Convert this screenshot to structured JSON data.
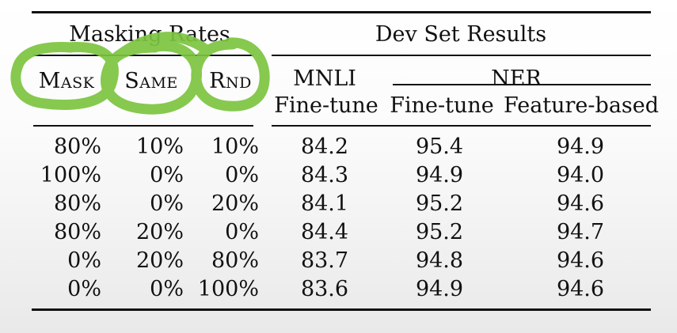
{
  "table": {
    "group_headers": {
      "masking": "Masking Rates",
      "dev": "Dev Set Results"
    },
    "sub_headers": {
      "mask": "Mask",
      "same": "Same",
      "rnd": "Rnd",
      "mnli": "MNLI",
      "ner": "NER"
    },
    "column_headers": {
      "mnli_ft": "Fine-tune",
      "ner_ft": "Fine-tune",
      "ner_fb": "Feature-based"
    },
    "rows": [
      [
        "80%",
        "10%",
        "10%",
        "84.2",
        "95.4",
        "94.9"
      ],
      [
        "100%",
        "0%",
        "0%",
        "84.3",
        "94.9",
        "94.0"
      ],
      [
        "80%",
        "0%",
        "20%",
        "84.1",
        "95.2",
        "94.6"
      ],
      [
        "80%",
        "20%",
        "0%",
        "84.4",
        "95.2",
        "94.7"
      ],
      [
        "0%",
        "20%",
        "80%",
        "83.7",
        "94.8",
        "94.6"
      ],
      [
        "0%",
        "0%",
        "100%",
        "83.6",
        "94.9",
        "94.6"
      ]
    ]
  },
  "annotation": {
    "color": "#7cc540",
    "description_of": "green highlighter loops around masking-rate headers"
  }
}
